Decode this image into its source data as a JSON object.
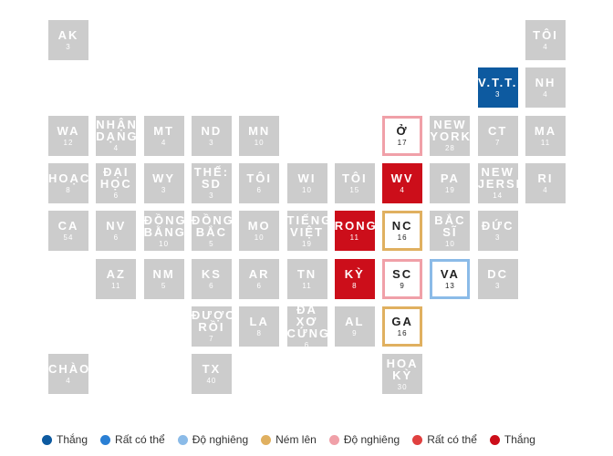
{
  "tiles": [
    {
      "label": "AK",
      "votes": 3,
      "fill": "#cccccc"
    },
    {
      "label": "TÔI",
      "votes": 4,
      "fill": "#cccccc"
    },
    {
      "label": "V.T.T.",
      "votes": 3,
      "fill": "#0d5aa0"
    },
    {
      "label": "NH",
      "votes": 4,
      "fill": "#cccccc"
    },
    {
      "label": "WA",
      "votes": 12,
      "fill": "#cccccc"
    },
    {
      "label": "NHẬN DẠNG",
      "votes": 4,
      "fill": "#cccccc"
    },
    {
      "label": "MT",
      "votes": 4,
      "fill": "#cccccc"
    },
    {
      "label": "ND",
      "votes": 3,
      "fill": "#cccccc"
    },
    {
      "label": "MN",
      "votes": 10,
      "fill": "#cccccc"
    },
    {
      "label": "Ở",
      "votes": 17,
      "fill": "#ffffff",
      "border": "#f0a0a8"
    },
    {
      "label": "NEW YORK",
      "votes": 28,
      "fill": "#cccccc"
    },
    {
      "label": "CT",
      "votes": 7,
      "fill": "#cccccc"
    },
    {
      "label": "MA",
      "votes": 11,
      "fill": "#cccccc"
    },
    {
      "label": "HOẠC",
      "votes": 8,
      "fill": "#cccccc"
    },
    {
      "label": "ĐẠI HỌC",
      "votes": 6,
      "fill": "#cccccc"
    },
    {
      "label": "WY",
      "votes": 3,
      "fill": "#cccccc"
    },
    {
      "label": "THẾ: SD",
      "votes": 3,
      "fill": "#cccccc"
    },
    {
      "label": "TÔI",
      "votes": 6,
      "fill": "#cccccc"
    },
    {
      "label": "WI",
      "votes": 10,
      "fill": "#cccccc"
    },
    {
      "label": "TÔI",
      "votes": 15,
      "fill": "#cccccc"
    },
    {
      "label": "WV",
      "votes": 4,
      "fill": "#cc0e1a"
    },
    {
      "label": "PA",
      "votes": 19,
      "fill": "#cccccc"
    },
    {
      "label": "NEW JERSEY",
      "votes": 14,
      "fill": "#cccccc"
    },
    {
      "label": "RI",
      "votes": 4,
      "fill": "#cccccc"
    },
    {
      "label": "CA",
      "votes": 54,
      "fill": "#cccccc"
    },
    {
      "label": "NV",
      "votes": 6,
      "fill": "#cccccc"
    },
    {
      "label": "ĐỒNG BẰNG",
      "votes": 10,
      "fill": "#cccccc"
    },
    {
      "label": "ĐỒNG BẮC",
      "votes": 5,
      "fill": "#cccccc"
    },
    {
      "label": "MO",
      "votes": 10,
      "fill": "#cccccc"
    },
    {
      "label": "TIẾNG VIỆT",
      "votes": 19,
      "fill": "#cccccc"
    },
    {
      "label": "RONG",
      "votes": 11,
      "fill": "#cc0e1a"
    },
    {
      "label": "NC",
      "votes": 16,
      "fill": "#ffffff",
      "border": "#e0b060"
    },
    {
      "label": "BẮC SĨ",
      "votes": 10,
      "fill": "#cccccc"
    },
    {
      "label": "ĐỨC",
      "votes": 3,
      "fill": "#cccccc"
    },
    {
      "label": "AZ",
      "votes": 11,
      "fill": "#cccccc"
    },
    {
      "label": "NM",
      "votes": 5,
      "fill": "#cccccc"
    },
    {
      "label": "KS",
      "votes": 6,
      "fill": "#cccccc"
    },
    {
      "label": "AR",
      "votes": 6,
      "fill": "#cccccc"
    },
    {
      "label": "TN",
      "votes": 11,
      "fill": "#cccccc"
    },
    {
      "label": "KỲ",
      "votes": 8,
      "fill": "#cc0e1a"
    },
    {
      "label": "SC",
      "votes": 9,
      "fill": "#ffffff",
      "border": "#f0a0a8"
    },
    {
      "label": "VA",
      "votes": 13,
      "fill": "#ffffff",
      "border": "#8bbbe8"
    },
    {
      "label": "DC",
      "votes": 3,
      "fill": "#cccccc"
    },
    {
      "label": "ĐƯỢC RỒI",
      "votes": 7,
      "fill": "#cccccc"
    },
    {
      "label": "LA",
      "votes": 8,
      "fill": "#cccccc"
    },
    {
      "label": "ĐA XƠ CỨNG",
      "votes": 6,
      "fill": "#cccccc"
    },
    {
      "label": "AL",
      "votes": 9,
      "fill": "#cccccc"
    },
    {
      "label": "GA",
      "votes": 16,
      "fill": "#ffffff",
      "border": "#e0b060"
    },
    {
      "label": "CHÀO",
      "votes": 4,
      "fill": "#cccccc"
    },
    {
      "label": "TX",
      "votes": 40,
      "fill": "#cccccc"
    },
    {
      "label": "HOA KỲ",
      "votes": 30,
      "fill": "#cccccc"
    }
  ],
  "legend": [
    {
      "label": "Thắng",
      "color": "#0d5aa0"
    },
    {
      "label": "Rất có thể",
      "color": "#2a7fd4"
    },
    {
      "label": "Độ nghiêng",
      "color": "#8bbbe8"
    },
    {
      "label": "Ném lên",
      "color": "#e0b060"
    },
    {
      "label": "Độ nghiêng",
      "color": "#f0a0a8"
    },
    {
      "label": "Rất có thể",
      "color": "#e0403f"
    },
    {
      "label": "Thắng",
      "color": "#cc0e1a"
    }
  ]
}
